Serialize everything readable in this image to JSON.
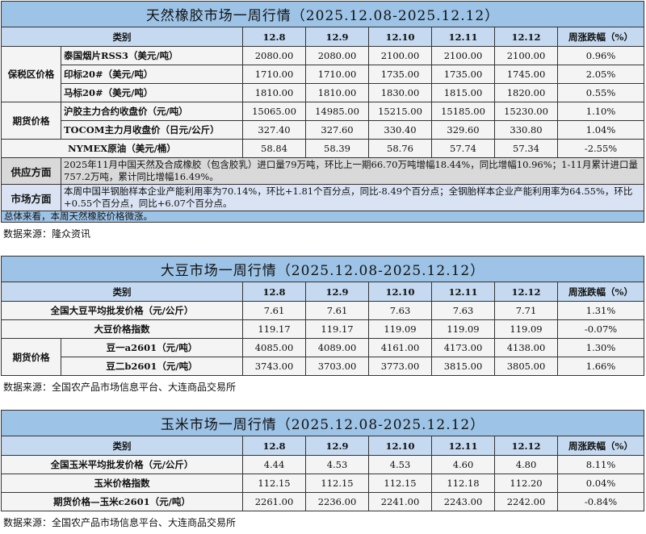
{
  "rubber": {
    "title": "天然橡胶市场一周行情（2025.12.08-2025.12.12）",
    "header": [
      "类别",
      "12.8",
      "12.9",
      "12.10",
      "12.11",
      "12.12",
      "周涨跌幅（%）"
    ],
    "groups": [
      {
        "group": "保税区价格",
        "rows": [
          {
            "name": "泰国烟片RSS3（美元/吨）",
            "values": [
              "2080.00",
              "2080.00",
              "2100.00",
              "2100.00",
              "2100.00",
              "0.96%"
            ]
          },
          {
            "name": "印标20#（美元/吨）",
            "values": [
              "1710.00",
              "1710.00",
              "1735.00",
              "1735.00",
              "1745.00",
              "2.05%"
            ]
          },
          {
            "name": "马标20#（美元/吨）",
            "values": [
              "1810.00",
              "1810.00",
              "1830.00",
              "1815.00",
              "1820.00",
              "0.55%"
            ]
          }
        ]
      },
      {
        "group": "期货价格",
        "rows": [
          {
            "name": "沪胶主力合约收盘价（元/吨）",
            "values": [
              "15065.00",
              "14985.00",
              "15215.00",
              "15185.00",
              "15230.00",
              "1.10%"
            ]
          },
          {
            "name": "TOCOM主力月收盘价（日元/公斤）",
            "values": [
              "327.40",
              "327.60",
              "330.40",
              "329.60",
              "330.80",
              "1.04%"
            ]
          }
        ]
      }
    ],
    "single_rows": [
      {
        "name": "NYMEX原油（美元/桶）",
        "values": [
          "58.84",
          "58.39",
          "58.76",
          "57.74",
          "57.34",
          "-2.55%"
        ]
      }
    ],
    "supply": {
      "label": "供应方面",
      "text": "2025年11月中国天然及合成橡胶（包含胶乳）进口量79万吨，环比上一期66.70万吨增幅18.44%，同比增幅10.96%；1-11月累计进口量757.2万吨，累计同比增幅16.49%。"
    },
    "market": {
      "label": "市场方面",
      "text": "本周中国半钢胎样本企业产能利用率为70.14%，环比+1.81个百分点，同比-8.49个百分点；全钢胎样本企业产能利用率为64.55%，环比+0.55个百分点，同比+6.07个百分点。"
    },
    "summary": "总体来看，本周天然橡胶价格微涨。",
    "source": "数据来源：隆众资讯"
  },
  "soybean": {
    "title": "大豆市场一周行情（2025.12.08-2025.12.12）",
    "header": [
      "类别",
      "12.8",
      "12.9",
      "12.10",
      "12.11",
      "12.12",
      "周涨跌幅（%）"
    ],
    "single_rows": [
      {
        "name": "全国大豆平均批发价格（元/公斤）",
        "values": [
          "7.61",
          "7.61",
          "7.63",
          "7.63",
          "7.71",
          "1.31%"
        ]
      },
      {
        "name": "大豆价格指数",
        "values": [
          "119.17",
          "119.17",
          "119.09",
          "119.09",
          "119.09",
          "-0.07%"
        ]
      }
    ],
    "groups": [
      {
        "group": "期货价格",
        "rows": [
          {
            "name": "豆一a2601（元/吨）",
            "values": [
              "4085.00",
              "4089.00",
              "4161.00",
              "4173.00",
              "4138.00",
              "1.30%"
            ]
          },
          {
            "name": "豆二b2601（元/吨）",
            "values": [
              "3743.00",
              "3703.00",
              "3773.00",
              "3815.00",
              "3805.00",
              "1.66%"
            ]
          }
        ]
      }
    ],
    "source": "数据来源：全国农产品市场信息平台、大连商品交易所"
  },
  "corn": {
    "title": "玉米市场一周行情（2025.12.08-2025.12.12）",
    "header": [
      "类别",
      "12.8",
      "12.9",
      "12.10",
      "12.11",
      "12.12",
      "周涨跌幅（%）"
    ],
    "single_rows": [
      {
        "name": "全国玉米平均批发价格（元/公斤）",
        "values": [
          "4.44",
          "4.53",
          "4.53",
          "4.60",
          "4.80",
          "8.11%"
        ]
      },
      {
        "name": "玉米价格指数",
        "values": [
          "112.15",
          "112.15",
          "112.15",
          "112.18",
          "112.20",
          "0.04%"
        ]
      },
      {
        "name": "期货价格—玉米c2601（元/吨）",
        "values": [
          "2261.00",
          "2236.00",
          "2241.00",
          "2243.00",
          "2242.00",
          "-0.84%"
        ]
      }
    ],
    "source": "数据来源：全国农产品市场信息平台、大连商品交易所"
  }
}
